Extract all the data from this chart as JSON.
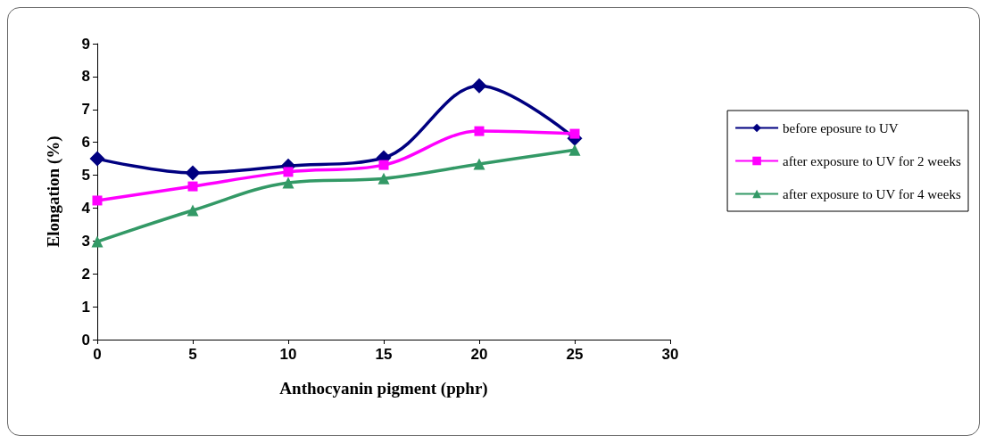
{
  "chart_data": {
    "type": "line",
    "xlabel": "Anthocyanin pigment (pphr)",
    "ylabel": "Elongation (%)",
    "x": [
      0,
      5,
      10,
      15,
      20,
      25
    ],
    "series": [
      {
        "name": "before eposure to UV",
        "color": "#000080",
        "marker": "diamond",
        "values": [
          5.5,
          5.07,
          5.28,
          5.53,
          7.72,
          6.12
        ]
      },
      {
        "name": "after exposure to UV for 2 weeks",
        "color": "#ff00ff",
        "marker": "square",
        "values": [
          4.23,
          4.66,
          5.1,
          5.31,
          6.34,
          6.26
        ]
      },
      {
        "name": "after exposure to UV for 4 weeks",
        "color": "#339966",
        "marker": "triangle",
        "values": [
          2.98,
          3.93,
          4.77,
          4.9,
          5.34,
          5.77
        ]
      }
    ],
    "xlim": [
      0,
      30
    ],
    "xticks": [
      0,
      5,
      10,
      15,
      20,
      25,
      30
    ],
    "ylim": [
      0,
      9
    ],
    "yticks": [
      0,
      1,
      2,
      3,
      4,
      5,
      6,
      7,
      8,
      9
    ],
    "grid": false,
    "legend": "right",
    "line_style": "solid"
  }
}
